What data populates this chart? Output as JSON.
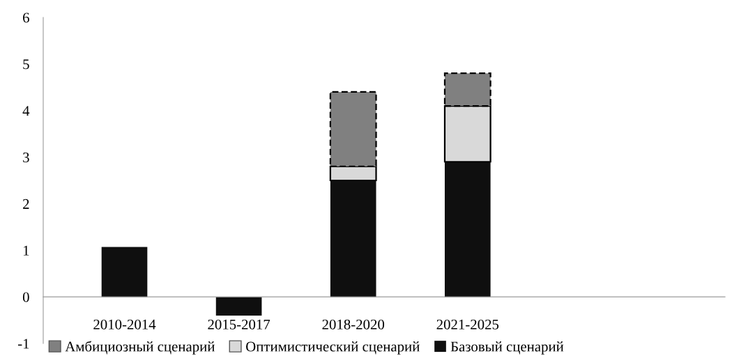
{
  "chart_data": {
    "type": "bar",
    "stacked": true,
    "categories": [
      "2010-2014",
      "2015-2017",
      "2018-2020",
      "2021-2025"
    ],
    "series": [
      {
        "name": "Базовый сценарий",
        "color": "#0f0f0f",
        "values": [
          1.07,
          -0.4,
          2.5,
          2.9
        ]
      },
      {
        "name": "Оптимистический сценарий",
        "color": "#d9d9d9",
        "line_style": "solid",
        "values": [
          null,
          null,
          0.3,
          1.2
        ]
      },
      {
        "name": "Амбициозный сценарий",
        "color": "#808080",
        "line_style": "dashed",
        "values": [
          null,
          null,
          1.6,
          0.7
        ]
      }
    ],
    "ylim": [
      -1,
      6
    ],
    "yticks": [
      -1,
      0,
      1,
      2,
      3,
      4,
      5,
      6
    ],
    "grid": false,
    "legend": "bottom"
  }
}
